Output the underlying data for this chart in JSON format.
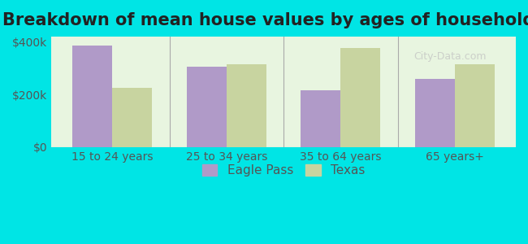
{
  "title": "Breakdown of mean house values by ages of householders",
  "categories": [
    "15 to 24 years",
    "25 to 34 years",
    "35 to 64 years",
    "65 years+"
  ],
  "eagle_pass": [
    385000,
    305000,
    215000,
    260000
  ],
  "texas": [
    225000,
    315000,
    375000,
    315000
  ],
  "eagle_pass_color": "#b09ac8",
  "texas_color": "#c8d4a0",
  "background_color": "#00e5e5",
  "plot_bg_color": "#e8f5e0",
  "ylim": [
    0,
    420000
  ],
  "yticks": [
    0,
    200000,
    400000
  ],
  "ytick_labels": [
    "$0",
    "$200k",
    "$400k"
  ],
  "ylabel": "",
  "bar_width": 0.35,
  "legend_eagle_pass": "Eagle Pass",
  "legend_texas": "Texas",
  "title_fontsize": 15,
  "tick_fontsize": 10,
  "legend_fontsize": 11
}
